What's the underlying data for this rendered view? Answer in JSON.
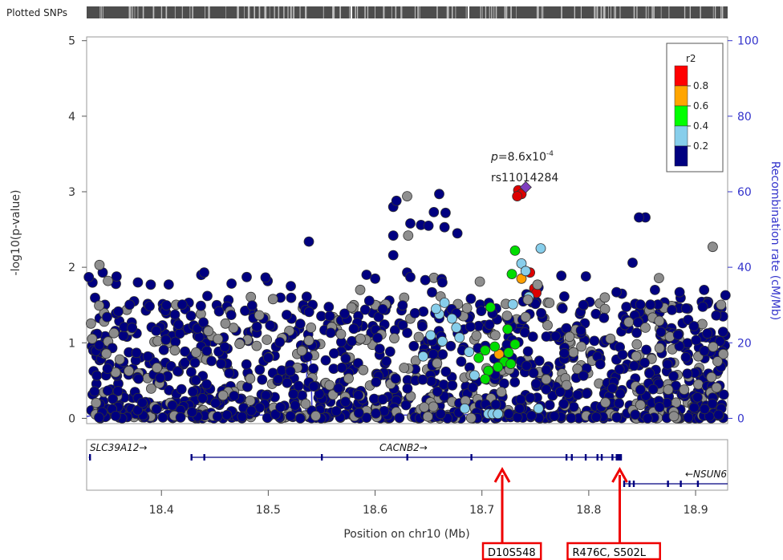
{
  "chart_data": {
    "type": "scatter",
    "title": "",
    "xlabel": "Position on chr10 (Mb)",
    "ylabel_left": "-log10(p-value)",
    "ylabel_right": "Recombination rate (cM/Mb)",
    "top_track_label": "Plotted SNPs",
    "xlim": [
      18.33,
      18.93
    ],
    "ylim": [
      -0.07,
      5.05
    ],
    "y2lim": [
      -1.4,
      101
    ],
    "x_ticks": [
      "18.4",
      "18.5",
      "18.6",
      "18.7",
      "18.8",
      "18.9"
    ],
    "y_ticks": [
      "0",
      "1",
      "2",
      "3",
      "4",
      "5"
    ],
    "y2_ticks": [
      "0",
      "20",
      "40",
      "60",
      "80",
      "100"
    ],
    "legend": {
      "title": "r2",
      "placement": "top-right",
      "breaks": [
        "0.8",
        "0.6",
        "0.4",
        "0.2"
      ],
      "colors": [
        "#ff0000",
        "#ffa500",
        "#00ff00",
        "#87ceeb",
        "#000080"
      ]
    },
    "lead_snp": {
      "name": "rs11014284",
      "pvalue_label": "p=8.6x10-4",
      "p_text": "p",
      "p_value_text": "=8.6x10",
      "p_exp_text": "-4",
      "x": 18.741,
      "y": 3.06,
      "color": "#7f3fbf"
    },
    "named_points": [
      {
        "x": 18.734,
        "y": 3.02,
        "r2": "high"
      },
      {
        "x": 18.737,
        "y": 2.97,
        "r2": "high"
      },
      {
        "x": 18.733,
        "y": 2.94,
        "r2": "high"
      },
      {
        "x": 18.745,
        "y": 1.93,
        "r2": "high"
      },
      {
        "x": 18.749,
        "y": 1.72,
        "r2": "high"
      },
      {
        "x": 18.751,
        "y": 1.66,
        "r2": "high"
      },
      {
        "x": 18.737,
        "y": 1.85,
        "r2": "mid"
      },
      {
        "x": 18.716,
        "y": 0.85,
        "r2": "mid"
      },
      {
        "x": 18.731,
        "y": 2.22,
        "r2": "lowmid"
      },
      {
        "x": 18.708,
        "y": 1.47,
        "r2": "lowmid"
      },
      {
        "x": 18.728,
        "y": 1.91,
        "r2": "lowmid"
      },
      {
        "x": 18.724,
        "y": 1.18,
        "r2": "lowmid"
      },
      {
        "x": 18.712,
        "y": 0.95,
        "r2": "lowmid"
      },
      {
        "x": 18.703,
        "y": 0.9,
        "r2": "lowmid"
      },
      {
        "x": 18.697,
        "y": 0.8,
        "r2": "lowmid"
      },
      {
        "x": 18.721,
        "y": 0.75,
        "r2": "lowmid"
      },
      {
        "x": 18.706,
        "y": 0.63,
        "r2": "lowmid"
      },
      {
        "x": 18.727,
        "y": 0.72,
        "r2": "lowmid"
      },
      {
        "x": 18.703,
        "y": 0.52,
        "r2": "lowmid"
      },
      {
        "x": 18.715,
        "y": 0.68,
        "r2": "lowmid"
      },
      {
        "x": 18.731,
        "y": 0.98,
        "r2": "lowmid"
      },
      {
        "x": 18.725,
        "y": 0.87,
        "r2": "lowmid"
      },
      {
        "x": 18.755,
        "y": 2.25,
        "r2": "low"
      },
      {
        "x": 18.737,
        "y": 2.05,
        "r2": "low"
      },
      {
        "x": 18.741,
        "y": 1.95,
        "r2": "low"
      },
      {
        "x": 18.744,
        "y": 1.61,
        "r2": "low"
      },
      {
        "x": 18.66,
        "y": 1.38,
        "r2": "low"
      },
      {
        "x": 18.665,
        "y": 1.53,
        "r2": "low"
      },
      {
        "x": 18.657,
        "y": 1.45,
        "r2": "low"
      },
      {
        "x": 18.672,
        "y": 1.32,
        "r2": "low"
      },
      {
        "x": 18.676,
        "y": 1.2,
        "r2": "low"
      },
      {
        "x": 18.652,
        "y": 1.1,
        "r2": "low"
      },
      {
        "x": 18.663,
        "y": 1.02,
        "r2": "low"
      },
      {
        "x": 18.679,
        "y": 1.07,
        "r2": "low"
      },
      {
        "x": 18.645,
        "y": 0.82,
        "r2": "low"
      },
      {
        "x": 18.688,
        "y": 0.88,
        "r2": "low"
      },
      {
        "x": 18.693,
        "y": 0.57,
        "r2": "low"
      },
      {
        "x": 18.684,
        "y": 0.13,
        "r2": "low"
      },
      {
        "x": 18.706,
        "y": 0.06,
        "r2": "low"
      },
      {
        "x": 18.71,
        "y": 0.06,
        "r2": "low"
      },
      {
        "x": 18.715,
        "y": 0.06,
        "r2": "low"
      },
      {
        "x": 18.753,
        "y": 0.13,
        "r2": "low"
      },
      {
        "x": 18.729,
        "y": 1.51,
        "r2": "low"
      },
      {
        "x": 18.63,
        "y": 2.94,
        "r2": "none"
      },
      {
        "x": 18.631,
        "y": 2.42,
        "r2": "none"
      },
      {
        "x": 18.698,
        "y": 1.81,
        "r2": "none"
      },
      {
        "x": 18.686,
        "y": 1.46,
        "r2": "none"
      },
      {
        "x": 18.743,
        "y": 1.57,
        "r2": "none"
      },
      {
        "x": 18.752,
        "y": 1.77,
        "r2": "none"
      },
      {
        "x": 18.342,
        "y": 2.03,
        "r2": "none"
      },
      {
        "x": 18.35,
        "y": 1.82,
        "r2": "none"
      },
      {
        "x": 18.815,
        "y": 1.6,
        "r2": "none"
      },
      {
        "x": 18.916,
        "y": 2.27,
        "r2": "none"
      },
      {
        "x": 18.866,
        "y": 1.29,
        "r2": "none"
      },
      {
        "x": 18.793,
        "y": 0.95,
        "r2": "none"
      },
      {
        "x": 18.782,
        "y": 1.08,
        "r2": "none"
      },
      {
        "x": 18.845,
        "y": 0.98,
        "r2": "none"
      },
      {
        "x": 18.853,
        "y": 1.2,
        "r2": "none"
      },
      {
        "x": 18.618,
        "y": 1.06,
        "r2": "none"
      },
      {
        "x": 18.538,
        "y": 1.03,
        "r2": "none"
      },
      {
        "x": 18.453,
        "y": 1.05,
        "r2": "none"
      },
      {
        "x": 18.54,
        "y": 1.2,
        "r2": "none"
      }
    ],
    "low_cluster": [
      {
        "x": 18.617,
        "y": 2.8
      },
      {
        "x": 18.62,
        "y": 2.88
      },
      {
        "x": 18.66,
        "y": 2.97
      },
      {
        "x": 18.666,
        "y": 2.72
      },
      {
        "x": 18.655,
        "y": 2.73
      },
      {
        "x": 18.643,
        "y": 2.56
      },
      {
        "x": 18.633,
        "y": 2.58
      },
      {
        "x": 18.65,
        "y": 2.55
      },
      {
        "x": 18.665,
        "y": 2.53
      },
      {
        "x": 18.677,
        "y": 2.45
      },
      {
        "x": 18.617,
        "y": 2.42
      },
      {
        "x": 18.538,
        "y": 2.34
      },
      {
        "x": 18.853,
        "y": 2.66
      },
      {
        "x": 18.847,
        "y": 2.66
      },
      {
        "x": 18.617,
        "y": 2.16
      },
      {
        "x": 18.6,
        "y": 1.85
      },
      {
        "x": 18.592,
        "y": 1.9
      },
      {
        "x": 18.63,
        "y": 1.93
      },
      {
        "x": 18.633,
        "y": 1.87
      },
      {
        "x": 18.647,
        "y": 1.83
      },
      {
        "x": 18.663,
        "y": 1.8
      },
      {
        "x": 18.44,
        "y": 1.93
      },
      {
        "x": 18.345,
        "y": 1.93
      },
      {
        "x": 18.332,
        "y": 1.87
      },
      {
        "x": 18.841,
        "y": 2.06
      },
      {
        "x": 18.862,
        "y": 1.7
      },
      {
        "x": 18.908,
        "y": 1.7
      },
      {
        "x": 18.928,
        "y": 1.63
      },
      {
        "x": 18.831,
        "y": 1.65
      },
      {
        "x": 18.826,
        "y": 1.67
      },
      {
        "x": 18.378,
        "y": 1.8
      },
      {
        "x": 18.39,
        "y": 1.77
      },
      {
        "x": 18.795,
        "y": 1.5
      },
      {
        "x": 18.885,
        "y": 1.67
      }
    ],
    "recombination_line": [
      [
        18.33,
        0.5
      ],
      [
        18.34,
        1.0
      ],
      [
        18.345,
        8.0
      ],
      [
        18.347,
        1.2
      ],
      [
        18.38,
        1.0
      ],
      [
        18.43,
        0.8
      ],
      [
        18.45,
        0.7
      ],
      [
        18.5,
        0.9
      ],
      [
        18.535,
        1.2
      ],
      [
        18.537,
        22.0
      ],
      [
        18.539,
        25.0
      ],
      [
        18.541,
        1.2
      ],
      [
        18.6,
        0.8
      ],
      [
        18.65,
        0.9
      ],
      [
        18.7,
        1.0
      ],
      [
        18.75,
        0.8
      ],
      [
        18.8,
        0.9
      ],
      [
        18.85,
        1.0
      ],
      [
        18.9,
        0.9
      ],
      [
        18.93,
        0.8
      ]
    ],
    "genes": [
      {
        "name": "SLC39A12",
        "label": "SLC39A12→",
        "start": 18.332,
        "end": 18.333,
        "row": 0,
        "exons": [
          18.333
        ]
      },
      {
        "name": "CACNB2",
        "label": "CACNB2→",
        "start": 18.428,
        "end": 18.831,
        "row": 0,
        "exons": [
          18.428,
          18.44,
          18.55,
          18.63,
          18.69,
          18.779,
          18.784,
          18.797,
          18.808,
          18.812,
          18.822,
          18.826,
          18.83
        ]
      },
      {
        "name": "NSUN6",
        "label": "←NSUN6",
        "start": 18.833,
        "end": 18.93,
        "row": 1,
        "exons": [
          18.833,
          18.838,
          18.842,
          18.874,
          18.886,
          18.902
        ]
      }
    ],
    "markers": [
      {
        "label": "D10S548",
        "x": 18.719
      },
      {
        "label": "R476C, S502L",
        "x": 18.829
      }
    ]
  }
}
